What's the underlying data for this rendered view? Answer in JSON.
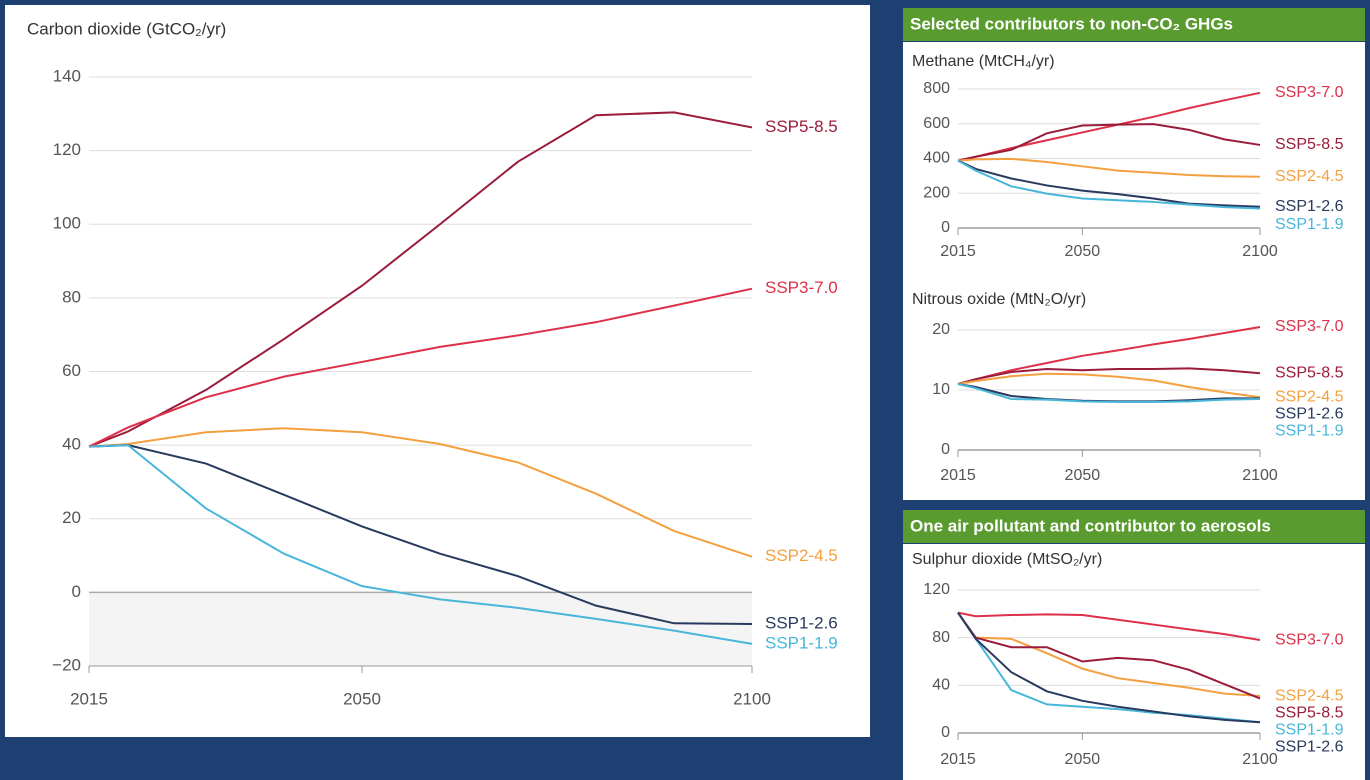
{
  "headers": [
    "Selected contributors to non-CO₂ GHGs",
    "One air pollutant and contributor to aerosols"
  ],
  "chart_data": [
    {
      "type": "line",
      "title": "Carbon dioxide (GtCO₂/yr)",
      "x": [
        2015,
        2020,
        2030,
        2040,
        2050,
        2060,
        2070,
        2080,
        2090,
        2100
      ],
      "xlim": [
        2015,
        2100
      ],
      "xticks": [
        2015,
        2050,
        2100
      ],
      "ylim": [
        -20,
        140
      ],
      "yticks": [
        {
          "value": -20,
          "label": "−20"
        },
        0,
        20,
        40,
        60,
        80,
        100,
        120,
        140
      ],
      "grid": true,
      "series": [
        {
          "name": "SSP5-8.5",
          "color": "#9b1b3a",
          "values": [
            39.6,
            43.7,
            55,
            68.8,
            83.3,
            100,
            117,
            129.6,
            130.4,
            126.3
          ]
        },
        {
          "name": "SSP3-7.0",
          "color": "#dd3049",
          "values": [
            39.6,
            44.8,
            53,
            58.6,
            62.6,
            66.7,
            69.8,
            73.4,
            77.9,
            82.5
          ]
        },
        {
          "name": "SSP2-4.5",
          "color": "#f4a03f",
          "values": [
            39.6,
            40.3,
            43.5,
            44.6,
            43.5,
            40.3,
            35.3,
            26.8,
            16.7,
            9.7
          ]
        },
        {
          "name": "SSP1-2.6",
          "color": "#283a5e",
          "values": [
            39.6,
            40.0,
            35.0,
            26.5,
            17.9,
            10.5,
            4.4,
            -3.6,
            -8.4,
            -8.6
          ]
        },
        {
          "name": "SSP1-1.9",
          "color": "#48b6d9",
          "values": [
            39.6,
            40.0,
            22.8,
            10.5,
            1.7,
            -1.9,
            -4.2,
            -7.2,
            -10.4,
            -14.0
          ]
        }
      ]
    },
    {
      "type": "line",
      "title": "Methane (MtCH₄/yr)",
      "x": [
        2015,
        2020,
        2030,
        2040,
        2050,
        2060,
        2070,
        2080,
        2090,
        2100
      ],
      "xlim": [
        2015,
        2100
      ],
      "xticks": [
        2015,
        2050,
        2100
      ],
      "ylim": [
        0,
        800
      ],
      "yticks": [
        0,
        200,
        400,
        600,
        800
      ],
      "grid": true,
      "series": [
        {
          "name": "SSP3-7.0",
          "color": "#dd3049",
          "values": [
            388,
            410,
            460,
            505,
            550,
            595,
            640,
            690,
            735,
            778
          ]
        },
        {
          "name": "SSP5-8.5",
          "color": "#9b1b3a",
          "values": [
            388,
            410,
            450,
            545,
            590,
            595,
            598,
            565,
            510,
            478
          ]
        },
        {
          "name": "SSP2-4.5",
          "color": "#f4a03f",
          "values": [
            388,
            395,
            398,
            380,
            355,
            330,
            318,
            305,
            298,
            295
          ]
        },
        {
          "name": "SSP1-2.6",
          "color": "#283a5e",
          "values": [
            388,
            340,
            285,
            245,
            215,
            195,
            170,
            140,
            130,
            122
          ]
        },
        {
          "name": "SSP1-1.9",
          "color": "#48b6d9",
          "values": [
            388,
            330,
            240,
            198,
            170,
            160,
            150,
            135,
            120,
            112
          ]
        }
      ]
    },
    {
      "type": "line",
      "title": "Nitrous oxide (MtN₂O/yr)",
      "x": [
        2015,
        2020,
        2030,
        2040,
        2050,
        2060,
        2070,
        2080,
        2090,
        2100
      ],
      "xlim": [
        2015,
        2100
      ],
      "xticks": [
        2015,
        2050,
        2100
      ],
      "ylim": [
        0,
        20
      ],
      "yticks": [
        0,
        10,
        20
      ],
      "grid": true,
      "series": [
        {
          "name": "SSP3-7.0",
          "color": "#dd3049",
          "values": [
            11.0,
            11.8,
            13.3,
            14.5,
            15.7,
            16.6,
            17.6,
            18.5,
            19.5,
            20.5
          ]
        },
        {
          "name": "SSP5-8.5",
          "color": "#9b1b3a",
          "values": [
            11.0,
            11.8,
            13.0,
            13.5,
            13.3,
            13.5,
            13.5,
            13.6,
            13.3,
            12.8
          ]
        },
        {
          "name": "SSP2-4.5",
          "color": "#f4a03f",
          "values": [
            11.0,
            11.5,
            12.3,
            12.7,
            12.6,
            12.2,
            11.6,
            10.5,
            9.6,
            8.8
          ]
        },
        {
          "name": "SSP1-2.6",
          "color": "#283a5e",
          "values": [
            11.0,
            10.5,
            9.0,
            8.5,
            8.2,
            8.1,
            8.1,
            8.3,
            8.6,
            8.6
          ]
        },
        {
          "name": "SSP1-1.9",
          "color": "#48b6d9",
          "values": [
            11.0,
            10.3,
            8.5,
            8.4,
            8.1,
            8.0,
            8.0,
            8.1,
            8.4,
            8.5
          ]
        }
      ]
    },
    {
      "type": "line",
      "title": "Sulphur dioxide (MtSO₂/yr)",
      "x": [
        2015,
        2020,
        2030,
        2040,
        2050,
        2060,
        2070,
        2080,
        2090,
        2100
      ],
      "xlim": [
        2015,
        2100
      ],
      "xticks": [
        2015,
        2050,
        2100
      ],
      "ylim": [
        0,
        120
      ],
      "yticks": [
        0,
        40,
        80,
        120
      ],
      "grid": true,
      "series": [
        {
          "name": "SSP3-7.0",
          "color": "#dd3049",
          "values": [
            101,
            98,
            99,
            99.5,
            99,
            95,
            91,
            87,
            83,
            78
          ]
        },
        {
          "name": "SSP2-4.5",
          "color": "#f4a03f",
          "values": [
            101,
            80,
            79,
            67,
            54,
            46,
            42,
            38,
            33,
            31
          ]
        },
        {
          "name": "SSP5-8.5",
          "color": "#9b1b3a",
          "values": [
            101,
            80,
            72,
            72,
            60,
            63,
            61,
            53,
            41,
            29
          ]
        },
        {
          "name": "SSP1-1.9",
          "color": "#48b6d9",
          "values": [
            101,
            79,
            36,
            24,
            22,
            20,
            17,
            15,
            12,
            9
          ]
        },
        {
          "name": "SSP1-2.6",
          "color": "#283a5e",
          "values": [
            101,
            79,
            51,
            35,
            27,
            22,
            18,
            14,
            11,
            9
          ]
        }
      ]
    }
  ]
}
